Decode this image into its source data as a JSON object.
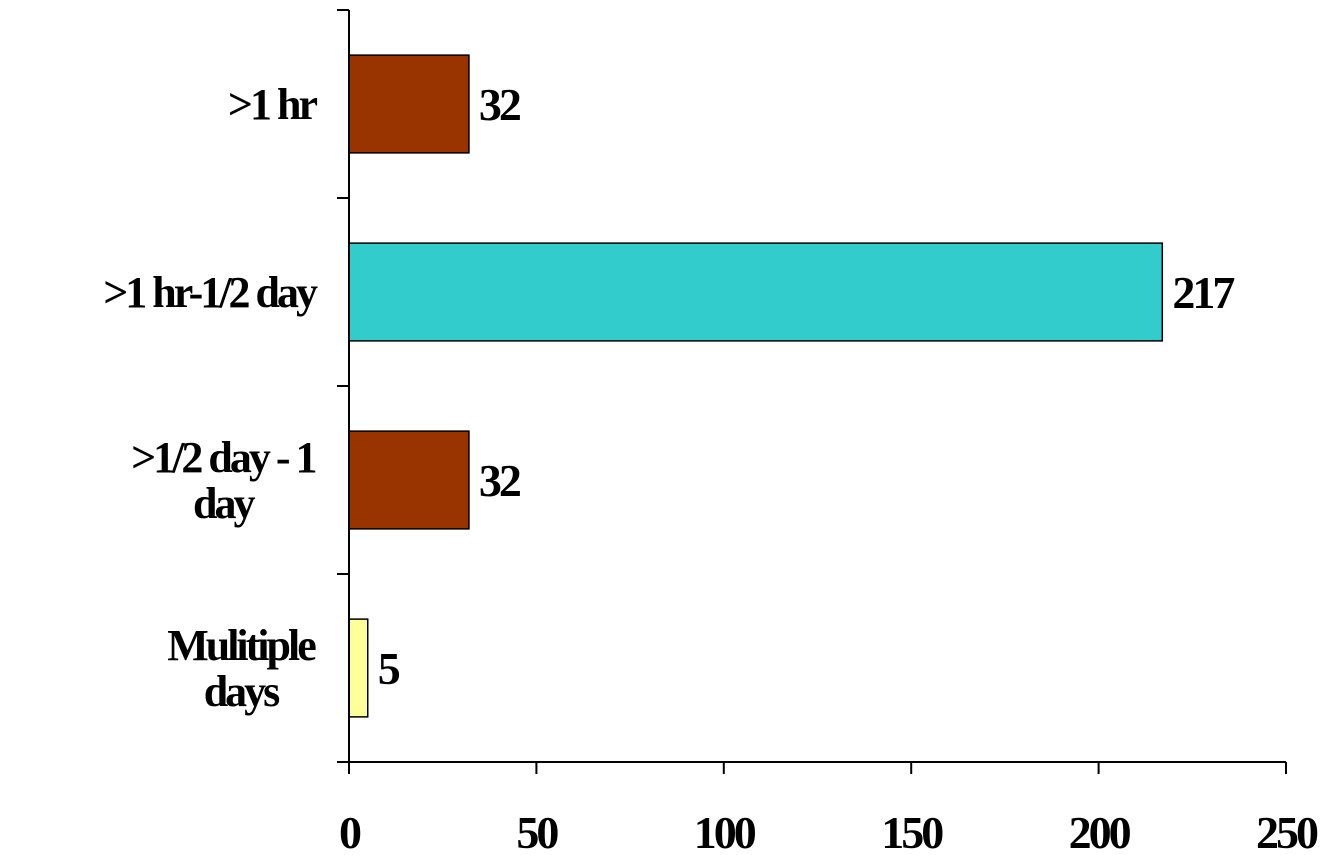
{
  "chart_data": {
    "type": "bar",
    "orientation": "horizontal",
    "categories": [
      ">1 hr",
      ">1 hr-1/2 day",
      ">1/2 day - 1 day",
      "Mulitiple days"
    ],
    "category_label_lines": [
      [
        ">1 hr"
      ],
      [
        ">1 hr-1/2 day"
      ],
      [
        ">1/2 day - 1",
        "day"
      ],
      [
        "Mulitiple",
        "days"
      ]
    ],
    "values": [
      32,
      217,
      32,
      5
    ],
    "value_labels": [
      "32",
      "217",
      "32",
      "5"
    ],
    "bar_colors": [
      "#993300",
      "#33CCCC",
      "#993300",
      "#FFFF99"
    ],
    "xlim": [
      0,
      250
    ],
    "x_ticks": [
      0,
      50,
      100,
      150,
      200,
      250
    ],
    "x_tick_labels": [
      "0",
      "50",
      "100",
      "150",
      "200",
      "250"
    ],
    "grid": false,
    "legend": "none"
  }
}
